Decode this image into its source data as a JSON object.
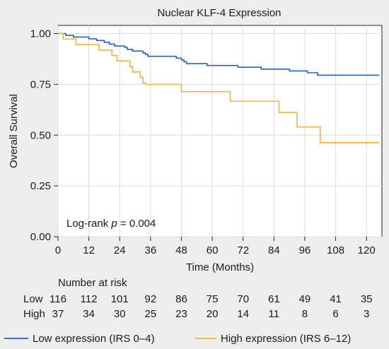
{
  "chart_data": {
    "type": "line",
    "title": "Nuclear KLF-4 Expression",
    "xlabel": "Time (Months)",
    "ylabel": "Overall Survival",
    "xlim": [
      0,
      126
    ],
    "ylim": [
      0,
      1.04
    ],
    "x_ticks": [
      0,
      12,
      24,
      36,
      48,
      60,
      72,
      84,
      96,
      108,
      120
    ],
    "y_ticks": [
      0.0,
      0.25,
      0.5,
      0.75,
      1.0
    ],
    "y_tick_labels": [
      "0.00",
      "0.25",
      "0.50",
      "0.75",
      "1.00"
    ],
    "grid": true,
    "annotation": {
      "prefix": "Log-rank ",
      "italic": "p",
      "suffix": " = 0.004"
    },
    "series": [
      {
        "name": "Low expression (IRS 0–4)",
        "color": "#1f63c6",
        "step": true,
        "points": [
          [
            0,
            1.0
          ],
          [
            3,
            0.991
          ],
          [
            6,
            0.983
          ],
          [
            12,
            0.974
          ],
          [
            15,
            0.966
          ],
          [
            18,
            0.957
          ],
          [
            20,
            0.948
          ],
          [
            22,
            0.939
          ],
          [
            26,
            0.931
          ],
          [
            27,
            0.922
          ],
          [
            29,
            0.914
          ],
          [
            33,
            0.905
          ],
          [
            34,
            0.897
          ],
          [
            35,
            0.888
          ],
          [
            46,
            0.879
          ],
          [
            48,
            0.87
          ],
          [
            49,
            0.861
          ],
          [
            50,
            0.852
          ],
          [
            58,
            0.843
          ],
          [
            70,
            0.834
          ],
          [
            79,
            0.825
          ],
          [
            90,
            0.816
          ],
          [
            97,
            0.807
          ],
          [
            101,
            0.795
          ],
          [
            125,
            0.795
          ]
        ]
      },
      {
        "name": "High expression (IRS 6–12)",
        "color": "#f5b23d",
        "step": true,
        "points": [
          [
            0,
            1.0
          ],
          [
            2,
            0.973
          ],
          [
            7,
            0.946
          ],
          [
            16,
            0.919
          ],
          [
            21,
            0.892
          ],
          [
            23,
            0.865
          ],
          [
            28,
            0.838
          ],
          [
            29,
            0.811
          ],
          [
            32,
            0.784
          ],
          [
            33,
            0.757
          ],
          [
            34,
            0.75
          ],
          [
            48,
            0.714
          ],
          [
            67,
            0.667
          ],
          [
            86,
            0.611
          ],
          [
            93,
            0.54
          ],
          [
            102,
            0.463
          ],
          [
            125,
            0.463
          ]
        ]
      }
    ]
  },
  "risk_table": {
    "title": "Number at risk",
    "times": [
      0,
      12,
      24,
      36,
      48,
      60,
      72,
      84,
      96,
      108,
      120
    ],
    "rows": [
      {
        "label": "Low",
        "values": [
          "116",
          "112",
          "101",
          "92",
          "86",
          "75",
          "70",
          "61",
          "49",
          "41",
          "35"
        ]
      },
      {
        "label": "High",
        "values": [
          "37",
          "34",
          "30",
          "25",
          "23",
          "20",
          "14",
          "11",
          "8",
          "6",
          "3"
        ]
      }
    ]
  }
}
